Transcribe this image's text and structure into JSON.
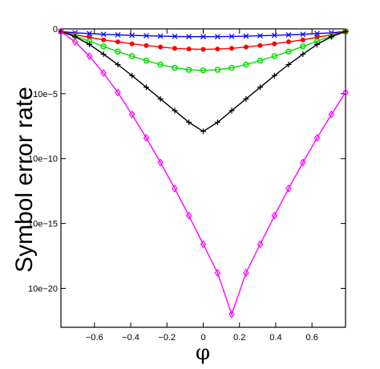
{
  "chart_data": {
    "type": "line",
    "title": "",
    "xlabel": "φ",
    "ylabel": "Symbol error rate",
    "xlim": [
      -0.785,
      0.785
    ],
    "ylim_log10": [
      -23,
      0
    ],
    "y_scale": "log10",
    "grid": false,
    "legend": "none",
    "x_ticks": [
      -0.6,
      -0.4,
      -0.2,
      0,
      0.2,
      0.4,
      0.6
    ],
    "x_tick_labels": [
      "−0.6",
      "−0.4",
      "−0.2",
      "0",
      "0.2",
      "0.4",
      "0.6"
    ],
    "y_ticks_log10": [
      0,
      -5,
      -10,
      -15,
      -20
    ],
    "y_tick_labels": [
      "0",
      "10e−5",
      "10e−10",
      "10e−15",
      "10e−20"
    ],
    "x": [
      -0.785,
      -0.707,
      -0.628,
      -0.55,
      -0.471,
      -0.393,
      -0.314,
      -0.236,
      -0.157,
      -0.079,
      0,
      0.079,
      0.157,
      0.236,
      0.314,
      0.393,
      0.471,
      0.55,
      0.628,
      0.707,
      0.785
    ],
    "series": [
      {
        "color": "#0000ff",
        "marker": "x",
        "log10_values": [
          -0.2,
          -0.3,
          -0.36,
          -0.42,
          -0.46,
          -0.5,
          -0.53,
          -0.56,
          -0.58,
          -0.6,
          -0.6,
          -0.6,
          -0.58,
          -0.56,
          -0.53,
          -0.5,
          -0.46,
          -0.42,
          -0.36,
          -0.3,
          -0.2
        ]
      },
      {
        "color": "#ff0000",
        "marker": "dot",
        "log10_values": [
          -0.2,
          -0.45,
          -0.65,
          -0.85,
          -1.0,
          -1.15,
          -1.28,
          -1.4,
          -1.5,
          -1.55,
          -1.58,
          -1.55,
          -1.5,
          -1.4,
          -1.28,
          -1.15,
          -1.0,
          -0.85,
          -0.65,
          -0.45,
          -0.2
        ]
      },
      {
        "color": "#00dd00",
        "marker": "circle",
        "log10_values": [
          -0.2,
          -0.55,
          -0.95,
          -1.35,
          -1.75,
          -2.1,
          -2.45,
          -2.75,
          -3.0,
          -3.15,
          -3.2,
          -3.15,
          -3.0,
          -2.75,
          -2.45,
          -2.1,
          -1.75,
          -1.35,
          -0.95,
          -0.55,
          -0.2
        ]
      },
      {
        "color": "#000000",
        "marker": "plus",
        "log10_values": [
          -0.2,
          -0.6,
          -1.2,
          -1.95,
          -2.75,
          -3.6,
          -4.5,
          -5.4,
          -6.3,
          -7.2,
          -7.9,
          -7.2,
          -6.3,
          -5.4,
          -4.5,
          -3.6,
          -2.75,
          -1.95,
          -1.2,
          -0.6,
          -0.2
        ]
      },
      {
        "color": "#ff00ff",
        "marker": "diamond",
        "log10_values": [
          -0.2,
          -1.0,
          -2.1,
          -3.4,
          -4.9,
          -6.6,
          -8.4,
          -10.3,
          -12.3,
          -14.4,
          -16.6,
          -18.8,
          -22.0,
          -18.8,
          -16.6,
          -14.4,
          -12.3,
          -10.3,
          -8.4,
          -6.6,
          -4.9
        ]
      }
    ]
  }
}
